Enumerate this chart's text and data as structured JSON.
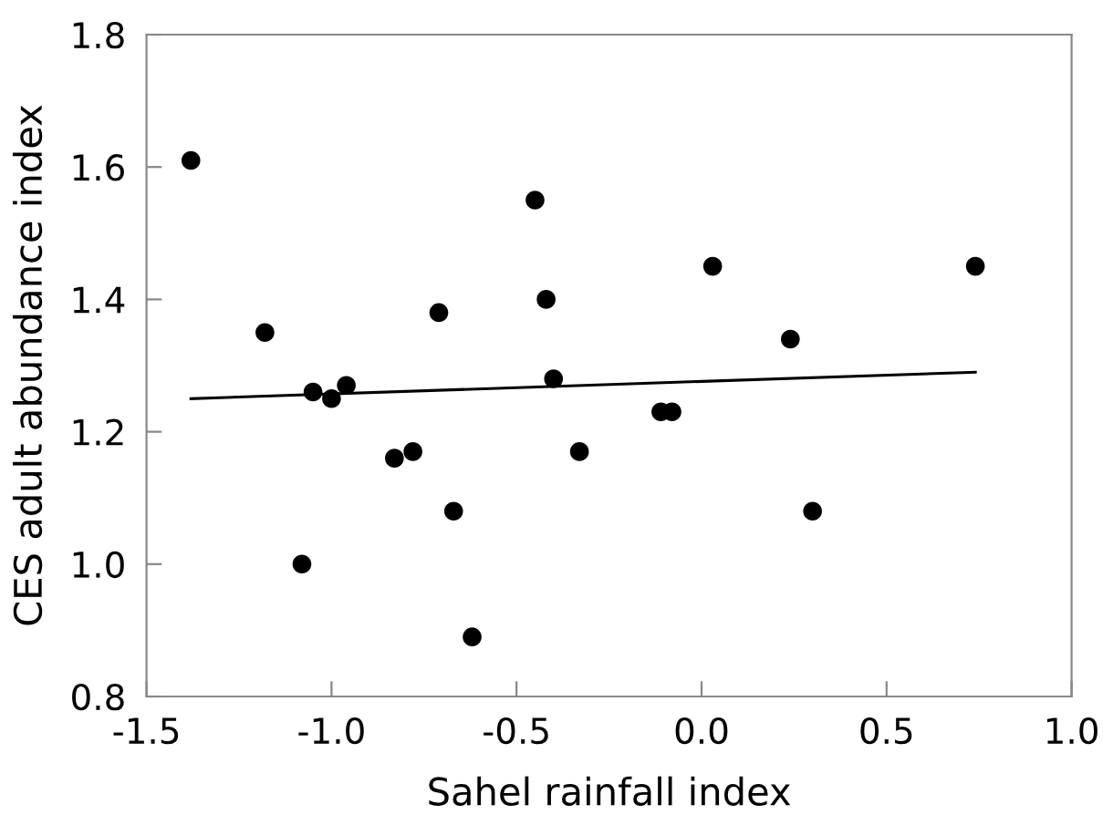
{
  "chart_data": {
    "type": "scatter",
    "xlabel": "Sahel rainfall index",
    "ylabel": "CES adult abundance index",
    "xlim": [
      -1.5,
      1.0
    ],
    "xticks": [
      {
        "value": -1.5,
        "label": "-1.5"
      },
      {
        "value": -1.0,
        "label": "-1.0"
      },
      {
        "value": -0.5,
        "label": "-0.5"
      },
      {
        "value": 0.0,
        "label": "0.0"
      },
      {
        "value": 0.5,
        "label": "0.5"
      },
      {
        "value": 1.0,
        "label": "1.0"
      }
    ],
    "ylim": [
      0.8,
      1.8
    ],
    "yticks": [
      {
        "value": 0.8,
        "label": "0.8"
      },
      {
        "value": 1.0,
        "label": "1.0"
      },
      {
        "value": 1.2,
        "label": "1.2"
      },
      {
        "value": 1.4,
        "label": "1.4"
      },
      {
        "value": 1.6,
        "label": "1.6"
      },
      {
        "value": 1.8,
        "label": "1.8"
      }
    ],
    "grid": false,
    "series": [
      {
        "marker": "circle",
        "color": "#000000",
        "x": [
          -1.38,
          -1.18,
          -1.08,
          -1.05,
          -1.0,
          -0.96,
          -0.83,
          -0.78,
          -0.71,
          -0.67,
          -0.62,
          -0.45,
          -0.42,
          -0.4,
          -0.33,
          -0.11,
          -0.08,
          0.03,
          0.24,
          0.3,
          0.74
        ],
        "values": [
          1.61,
          1.35,
          1.0,
          1.26,
          1.25,
          1.27,
          1.16,
          1.17,
          1.38,
          1.08,
          0.89,
          1.55,
          1.4,
          1.28,
          1.17,
          1.23,
          1.23,
          1.45,
          1.34,
          1.08,
          1.45
        ]
      },
      {
        "type": "line",
        "color": "#000000",
        "marker": "none",
        "x": [
          -1.38,
          0.74
        ],
        "values": [
          1.25,
          1.29
        ]
      }
    ]
  }
}
